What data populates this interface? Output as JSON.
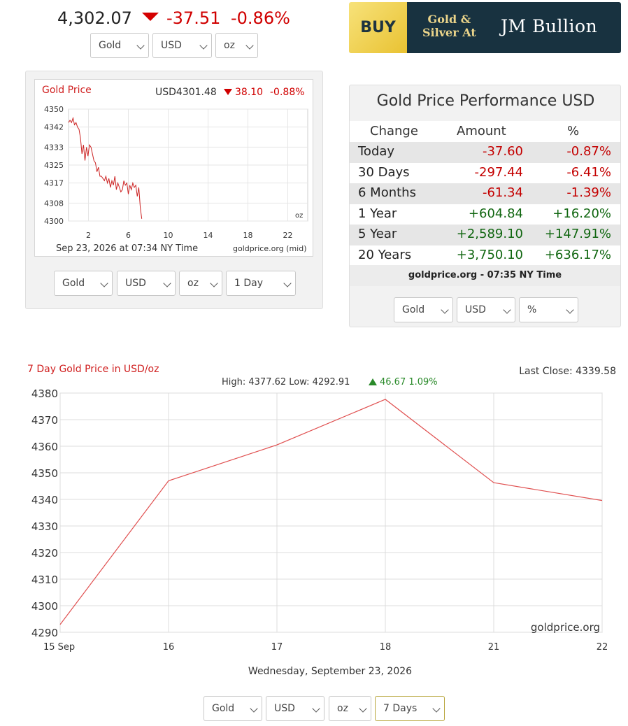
{
  "header": {
    "price": "4,302.07",
    "change": "-37.51",
    "change_pct": "-0.86%",
    "metal": "Gold",
    "currency": "USD",
    "unit": "oz",
    "trend_icon": "triangle-down-icon"
  },
  "ad": {
    "buy": "BUY",
    "line1": "Gold &",
    "line2": "Silver At",
    "brand": "JM Bullion",
    "colors": {
      "gold": "#e9c232",
      "navy": "#183240"
    }
  },
  "small_chart": {
    "title": "Gold Price",
    "quote": "USD4301.48",
    "change": "38.10",
    "change_pct": "-0.88%",
    "date": "Sep 23, 2026 at 07:34 NY Time",
    "source": "goldprice.org (mid)",
    "unit_label": "oz",
    "selects": {
      "metal": "Gold",
      "currency": "USD",
      "unit": "oz",
      "range": "1 Day"
    },
    "chart_data": {
      "type": "line",
      "ylim": [
        4300,
        4350
      ],
      "yticks": [
        "4350",
        "4342",
        "4333",
        "4325",
        "4317",
        "4308",
        "4300"
      ],
      "xlim": [
        0,
        24
      ],
      "xticks": [
        "2",
        "6",
        "10",
        "14",
        "18",
        "22"
      ],
      "series": [
        {
          "color": "#cc2222",
          "x": [
            0.0,
            0.15,
            0.3,
            0.45,
            0.6,
            0.75,
            0.9,
            1.05,
            1.2,
            1.35,
            1.5,
            1.65,
            1.8,
            1.95,
            2.1,
            2.25,
            2.4,
            2.55,
            2.7,
            2.85,
            3.0,
            3.15,
            3.3,
            3.45,
            3.6,
            3.75,
            3.9,
            4.05,
            4.2,
            4.35,
            4.5,
            4.65,
            4.8,
            4.95,
            5.1,
            5.25,
            5.4,
            5.55,
            5.7,
            5.85,
            6.0,
            6.15,
            6.3,
            6.45,
            6.6,
            6.75,
            6.9,
            7.05,
            7.2,
            7.35
          ],
          "y": [
            4344,
            4345,
            4344,
            4346,
            4343,
            4344,
            4342,
            4341,
            4337,
            4330,
            4334,
            4327,
            4333,
            4329,
            4334,
            4333,
            4330,
            4327,
            4326,
            4322,
            4324,
            4320,
            4320,
            4319,
            4318,
            4320,
            4317,
            4319,
            4315,
            4318,
            4316,
            4320,
            4314,
            4317,
            4315,
            4313,
            4314,
            4318,
            4316,
            4317,
            4312,
            4316,
            4314,
            4317,
            4315,
            4316,
            4311,
            4315,
            4306,
            4301
          ]
        }
      ]
    }
  },
  "performance": {
    "title": "Gold Price Performance USD",
    "headers": [
      "Change",
      "Amount",
      "%"
    ],
    "rows": [
      {
        "label": "Today",
        "amount": "-37.60",
        "pct": "-0.87%",
        "dir": "neg"
      },
      {
        "label": "30 Days",
        "amount": "-297.44",
        "pct": "-6.41%",
        "dir": "neg"
      },
      {
        "label": "6 Months",
        "amount": "-61.34",
        "pct": "-1.39%",
        "dir": "neg"
      },
      {
        "label": "1 Year",
        "amount": "+604.84",
        "pct": "+16.20%",
        "dir": "pos"
      },
      {
        "label": "5 Year",
        "amount": "+2,589.10",
        "pct": "+147.91%",
        "dir": "pos"
      },
      {
        "label": "20 Years",
        "amount": "+3,750.10",
        "pct": "+636.17%",
        "dir": "pos"
      }
    ],
    "footer": "goldprice.org - 07:35 NY Time",
    "selects": {
      "metal": "Gold",
      "currency": "USD",
      "display": "%"
    }
  },
  "big_chart": {
    "title": "7 Day Gold Price in USD/oz",
    "last_close": "Last Close: 4339.58",
    "high_low": "High: 4377.62 Low: 4292.91",
    "change": "46.67 1.09%",
    "watermark": "goldprice.org",
    "date": "Wednesday, September 23, 2026",
    "selects": {
      "metal": "Gold",
      "currency": "USD",
      "unit": "oz",
      "range": "7 Days"
    },
    "chart_data": {
      "type": "line",
      "ylim": [
        4290,
        4380
      ],
      "yticks": [
        "4380",
        "4370",
        "4360",
        "4350",
        "4340",
        "4330",
        "4320",
        "4310",
        "4300",
        "4290"
      ],
      "categories": [
        "15 Sep",
        "16",
        "17",
        "18",
        "21",
        "22"
      ],
      "series": [
        {
          "color": "#e05050",
          "values": [
            4292.91,
            4347,
            4360.5,
            4377.62,
            4346.3,
            4339.58
          ]
        }
      ]
    }
  }
}
